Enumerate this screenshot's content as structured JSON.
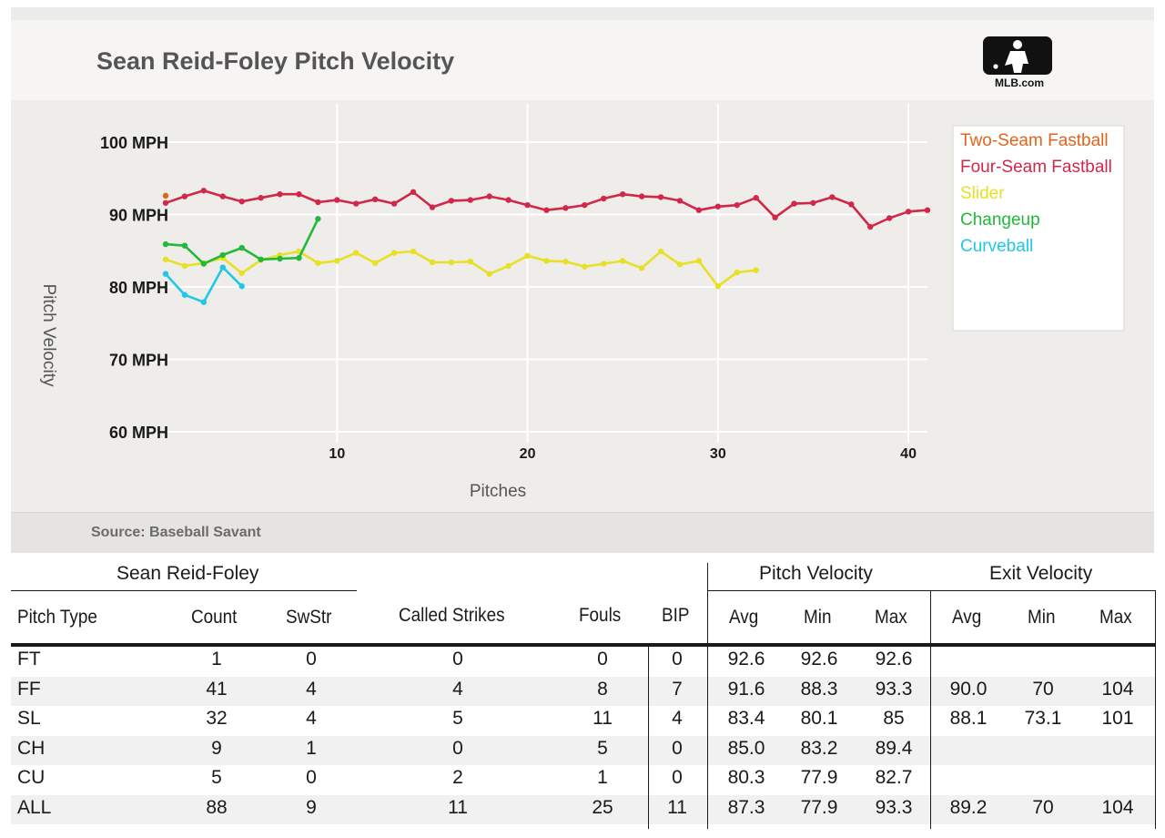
{
  "header": {
    "title": "Sean Reid-Foley Pitch Velocity",
    "logo_text": "MLB.com",
    "source": "Source: Baseball Savant"
  },
  "colors": {
    "two_seam": "#e0641c",
    "four_seam": "#d1284a",
    "slider": "#e8e026",
    "changeup": "#22b83a",
    "curveball": "#21c7e6",
    "grid": "#ffffff",
    "plot_bg": "#efedea"
  },
  "chart_data": {
    "type": "line",
    "title": "Sean Reid-Foley Pitch Velocity",
    "xlabel": "Pitches",
    "ylabel": "Pitch Velocity",
    "xlim": [
      1,
      41
    ],
    "ylim": [
      60,
      100
    ],
    "x_ticks": [
      10,
      20,
      30,
      40
    ],
    "y_ticks": [
      100,
      90,
      80,
      70,
      60
    ],
    "y_tick_labels": [
      "100 MPH",
      "90 MPH",
      "80 MPH",
      "70 MPH",
      "60 MPH"
    ],
    "grid": true,
    "legend_position": "top-right",
    "series": [
      {
        "name": "Two-Seam Fastball",
        "color": "#e0641c",
        "x": [
          1
        ],
        "y": [
          92.6
        ]
      },
      {
        "name": "Four-Seam Fastball",
        "color": "#d1284a",
        "x": [
          1,
          2,
          3,
          4,
          5,
          6,
          7,
          8,
          9,
          10,
          11,
          12,
          13,
          14,
          15,
          16,
          17,
          18,
          19,
          20,
          21,
          22,
          23,
          24,
          25,
          26,
          27,
          28,
          29,
          30,
          31,
          32,
          33,
          34,
          35,
          36,
          37,
          38,
          39,
          40,
          41
        ],
        "y": [
          91.6,
          92.5,
          93.3,
          92.5,
          91.8,
          92.3,
          92.8,
          92.8,
          91.7,
          92.0,
          91.5,
          92.1,
          91.5,
          93.1,
          91.0,
          91.9,
          92.0,
          92.5,
          92.0,
          91.3,
          90.6,
          90.9,
          91.3,
          92.2,
          92.8,
          92.5,
          92.4,
          91.9,
          90.6,
          91.1,
          91.3,
          92.3,
          89.6,
          91.5,
          91.6,
          92.4,
          91.4,
          88.3,
          89.5,
          90.4,
          90.6
        ]
      },
      {
        "name": "Slider",
        "color": "#e8e026",
        "x": [
          1,
          2,
          3,
          4,
          5,
          6,
          7,
          8,
          9,
          10,
          11,
          12,
          13,
          14,
          15,
          16,
          17,
          18,
          19,
          20,
          21,
          22,
          23,
          24,
          25,
          26,
          27,
          28,
          29,
          30,
          31,
          32
        ],
        "y": [
          83.8,
          82.9,
          83.3,
          84.0,
          81.9,
          83.7,
          84.4,
          84.9,
          83.3,
          83.6,
          84.7,
          83.3,
          84.7,
          84.9,
          83.4,
          83.4,
          83.5,
          81.8,
          82.9,
          84.3,
          83.6,
          83.5,
          82.8,
          83.2,
          83.6,
          82.6,
          84.9,
          83.1,
          83.6,
          80.1,
          82.0,
          82.3
        ]
      },
      {
        "name": "Changeup",
        "color": "#22b83a",
        "x": [
          1,
          2,
          3,
          4,
          5,
          6,
          7,
          8,
          9
        ],
        "y": [
          85.9,
          85.7,
          83.2,
          84.4,
          85.4,
          83.8,
          83.9,
          84.0,
          89.4
        ]
      },
      {
        "name": "Curveball",
        "color": "#21c7e6",
        "x": [
          1,
          2,
          3,
          4,
          5
        ],
        "y": [
          81.8,
          78.9,
          77.9,
          82.7,
          80.1
        ]
      }
    ]
  },
  "table": {
    "group_player": "Sean Reid-Foley",
    "group_velocity": "Pitch Velocity",
    "group_exit": "Exit Velocity",
    "headers": {
      "pitch_type": "Pitch Type",
      "count": "Count",
      "swstr": "SwStr",
      "called": "Called Strikes",
      "fouls": "Fouls",
      "bip": "BIP",
      "pv_avg": "Avg",
      "pv_min": "Min",
      "pv_max": "Max",
      "ev_avg": "Avg",
      "ev_min": "Min",
      "ev_max": "Max"
    },
    "rows": [
      {
        "pitch_type": "FT",
        "count": "1",
        "swstr": "0",
        "called": "0",
        "fouls": "0",
        "bip": "0",
        "pv_avg": "92.6",
        "pv_min": "92.6",
        "pv_max": "92.6",
        "ev_avg": "",
        "ev_min": "",
        "ev_max": ""
      },
      {
        "pitch_type": "FF",
        "count": "41",
        "swstr": "4",
        "called": "4",
        "fouls": "8",
        "bip": "7",
        "pv_avg": "91.6",
        "pv_min": "88.3",
        "pv_max": "93.3",
        "ev_avg": "90.0",
        "ev_min": "70",
        "ev_max": "104"
      },
      {
        "pitch_type": "SL",
        "count": "32",
        "swstr": "4",
        "called": "5",
        "fouls": "11",
        "bip": "4",
        "pv_avg": "83.4",
        "pv_min": "80.1",
        "pv_max": "85",
        "ev_avg": "88.1",
        "ev_min": "73.1",
        "ev_max": "101"
      },
      {
        "pitch_type": "CH",
        "count": "9",
        "swstr": "1",
        "called": "0",
        "fouls": "5",
        "bip": "0",
        "pv_avg": "85.0",
        "pv_min": "83.2",
        "pv_max": "89.4",
        "ev_avg": "",
        "ev_min": "",
        "ev_max": ""
      },
      {
        "pitch_type": "CU",
        "count": "5",
        "swstr": "0",
        "called": "2",
        "fouls": "1",
        "bip": "0",
        "pv_avg": "80.3",
        "pv_min": "77.9",
        "pv_max": "82.7",
        "ev_avg": "",
        "ev_min": "",
        "ev_max": ""
      },
      {
        "pitch_type": "ALL",
        "count": "88",
        "swstr": "9",
        "called": "11",
        "fouls": "25",
        "bip": "11",
        "pv_avg": "87.3",
        "pv_min": "77.9",
        "pv_max": "93.3",
        "ev_avg": "89.2",
        "ev_min": "70",
        "ev_max": "104"
      }
    ]
  }
}
